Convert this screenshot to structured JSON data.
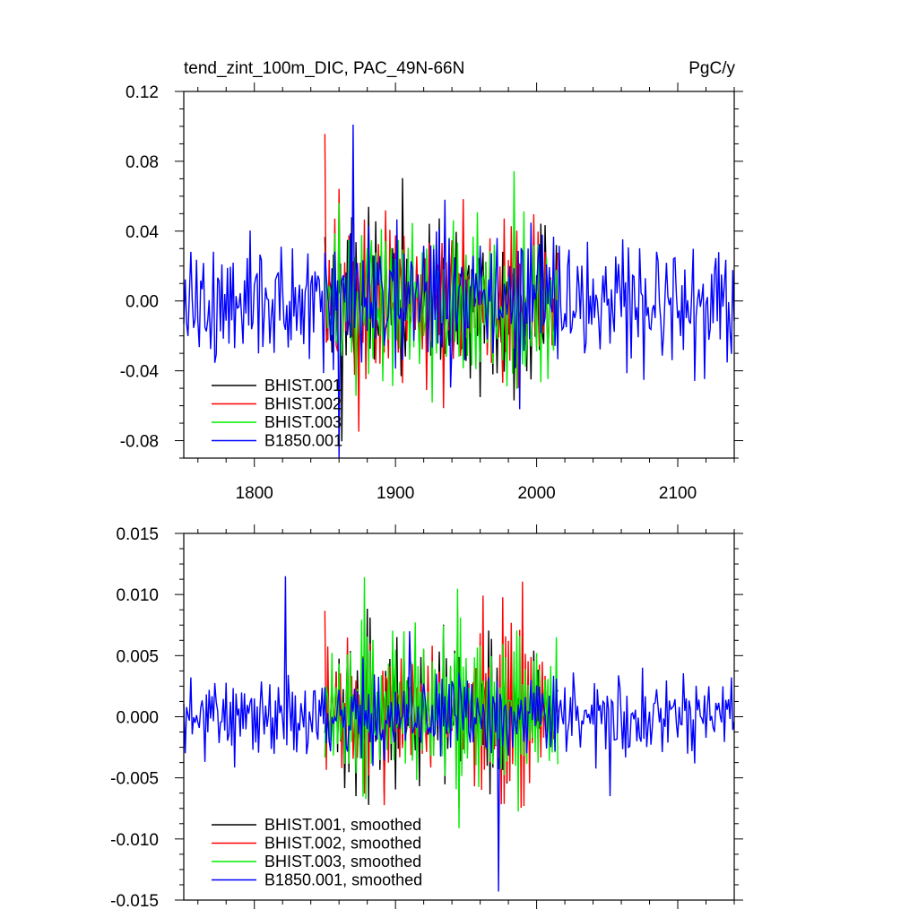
{
  "chart_data": [
    {
      "type": "line",
      "title": "tend_zint_100m_DIC, PAC_49N-66N",
      "units": "PgC/y",
      "xlim": [
        1750,
        2140
      ],
      "ylim": [
        -0.09,
        0.12
      ],
      "x_ticks": [
        1800,
        1900,
        2000,
        2100
      ],
      "x_tick_labels": [
        "1800",
        "1900",
        "2000",
        "2100"
      ],
      "y_ticks": [
        -0.08,
        -0.04,
        0.0,
        0.04,
        0.08,
        0.12
      ],
      "y_tick_labels": [
        "-0.08",
        "-0.04",
        "0.00",
        "0.04",
        "0.08",
        "0.12"
      ],
      "grid": false,
      "legend_position": "bottom-left",
      "series": [
        {
          "name": "BHIST.001",
          "color": "#000000",
          "x_start": 1850,
          "x_end": 2015,
          "base": 0.0,
          "values": [
            0.03,
            -0.04,
            0.05,
            -0.02,
            0.01,
            -0.07,
            0.04,
            0.02,
            -0.05,
            0.06,
            -0.03,
            0.0,
            0.05,
            -0.06,
            0.02,
            0.04,
            -0.03,
            0.06,
            -0.05,
            0.01,
            0.03,
            -0.04,
            0.02,
            -0.078,
            0.05,
            -0.02,
            0.04,
            -0.05,
            0.03,
            0.0,
            -0.04,
            0.06,
            -0.02,
            0.01,
            -0.05,
            0.04,
            0.02,
            -0.03,
            0.05,
            -0.06,
            0.02,
            0.03,
            -0.04,
            0.05,
            -0.01,
            0.0,
            -0.05,
            0.04,
            0.03,
            -0.02,
            0.06,
            -0.04,
            0.01,
            0.05,
            -0.03,
            0.02,
            -0.06,
            0.04,
            0.0,
            -0.02,
            0.05,
            -0.04,
            0.03,
            0.01,
            -0.05,
            0.06,
            -0.03,
            0.02,
            -0.01,
            0.04
          ]
        },
        {
          "name": "BHIST.002",
          "color": "#ff0000",
          "x_start": 1850,
          "x_end": 2015,
          "base": 0.0,
          "values": [
            0.089,
            -0.05,
            0.03,
            -0.06,
            0.07,
            -0.02,
            0.04,
            -0.04,
            0.02,
            0.05,
            -0.07,
            0.03,
            0.06,
            -0.03,
            0.01,
            -0.05,
            0.04,
            0.02,
            -0.06,
            0.05,
            -0.01,
            0.03,
            -0.04,
            0.06,
            -0.02,
            0.0,
            0.04,
            -0.05,
            0.02,
            0.03,
            -0.067,
            0.05,
            -0.03,
            0.01,
            0.04,
            -0.06,
            0.03,
            -0.02,
            0.05,
            0.0,
            -0.04,
            0.06,
            -0.03,
            0.02,
            -0.05,
            0.04,
            0.01,
            -0.02,
            0.05,
            -0.06,
            0.03,
            -0.01,
            0.04,
            -0.072,
            0.02,
            0.05,
            -0.03,
            0.06,
            0.01,
            -0.04,
            0.03,
            -0.02,
            0.05,
            -0.05,
            0.0,
            0.04,
            -0.03,
            0.02,
            0.01,
            -0.02
          ]
        },
        {
          "name": "BHIST.003",
          "color": "#00ee00",
          "x_start": 1850,
          "x_end": 2015,
          "base": 0.0,
          "values": [
            0.02,
            -0.03,
            0.04,
            -0.05,
            0.06,
            -0.02,
            0.03,
            -0.04,
            0.05,
            -0.06,
            0.01,
            0.04,
            -0.03,
            0.06,
            -0.05,
            0.02,
            -0.01,
            0.07,
            -0.04,
            0.03,
            -0.06,
            0.02,
            0.05,
            -0.03,
            0.01,
            -0.04,
            0.06,
            -0.02,
            0.04,
            -0.05,
            0.03,
            0.0,
            -0.06,
            0.05,
            -0.02,
            0.04,
            -0.03,
            0.06,
            -0.05,
            0.02,
            0.03,
            -0.04,
            0.05,
            -0.01,
            -0.06,
            0.081,
            -0.03,
            0.02,
            0.04,
            -0.05,
            0.06,
            -0.02,
            0.01,
            -0.04,
            0.05,
            -0.03,
            0.08,
            -0.06,
            0.02,
            -0.075,
            0.04,
            -0.02,
            0.03,
            -0.05,
            0.06,
            0.01,
            -0.04,
            0.02,
            -0.03,
            0.03
          ]
        },
        {
          "name": "B1850.001",
          "color": "#0000ff",
          "x_start": 1750,
          "x_end": 2140,
          "base": 0.0,
          "amplitude": 0.045,
          "seed": 4,
          "peaks": [
            [
              1870,
              0.101
            ],
            [
              1860,
              -0.09
            ],
            [
              1935,
              0.058
            ],
            [
              1988,
              -0.062
            ]
          ]
        }
      ]
    },
    {
      "type": "line",
      "ylim": [
        -0.015,
        0.015
      ],
      "xlim": [
        1750,
        2140
      ],
      "x_ticks": [
        1800,
        1900,
        2000,
        2100
      ],
      "y_ticks": [
        -0.015,
        -0.01,
        -0.005,
        0.0,
        0.005,
        0.01,
        0.015
      ],
      "y_tick_labels": [
        "-0.015",
        "-0.010",
        "-0.005",
        "0.000",
        "0.005",
        "0.010",
        "0.015"
      ],
      "grid": false,
      "legend_position": "bottom-left",
      "series": [
        {
          "name": "BHIST.001, smoothed",
          "color": "#000000",
          "x_start": 1850,
          "x_end": 2015,
          "base": 0.001,
          "values": [
            -0.002,
            0.004,
            -0.003,
            0.006,
            0.002,
            -0.005,
            0.008,
            0.003,
            -0.007,
            0.005,
            -0.001,
            0.011,
            0.004,
            -0.004,
            0.006,
            -0.006,
            0.002,
            0.007,
            -0.009,
            0.003,
            0.005,
            -0.002,
            0.004,
            -0.005,
            0.008,
            0.001,
            -0.003,
            0.006,
            0.002,
            -0.004,
            0.009,
            0.004,
            -0.002,
            0.007,
            -0.006,
            0.003,
            0.005,
            -0.001,
            0.004,
            0.002,
            -0.003,
            0.006,
            0.008,
            0.003,
            0.005,
            -0.004,
            0.007,
            0.002,
            0.004,
            -0.002,
            0.006,
            0.003,
            0.001,
            0.005,
            -0.003,
            0.004,
            0.002,
            -0.001,
            0.003,
            0.0
          ]
        },
        {
          "name": "BHIST.002, smoothed",
          "color": "#ff0000",
          "x_start": 1850,
          "x_end": 2015,
          "base": 0.001,
          "values": [
            0.008,
            0.004,
            -0.003,
            0.006,
            -0.005,
            0.002,
            0.007,
            -0.004,
            0.005,
            0.001,
            -0.006,
            0.008,
            0.003,
            -0.002,
            0.004,
            -0.007,
            0.005,
            0.002,
            -0.003,
            0.006,
            0.004,
            -0.001,
            0.007,
            -0.004,
            0.003,
            0.005,
            -0.006,
            0.008,
            0.002,
            -0.002,
            0.005,
            0.003,
            -0.004,
            0.006,
            0.009,
            -0.003,
            0.004,
            0.001,
            -0.007,
            0.006,
            0.01,
            0.003,
            0.005,
            -0.002,
            0.004,
            0.011,
            0.006,
            0.008,
            0.002,
            0.005,
            0.012,
            0.004,
            0.007,
            0.001,
            0.004,
            0.006,
            0.002,
            0.003,
            -0.001,
            0.002
          ]
        },
        {
          "name": "BHIST.003, smoothed",
          "color": "#00ee00",
          "x_start": 1850,
          "x_end": 2015,
          "base": 0.001,
          "values": [
            -0.004,
            0.003,
            -0.006,
            0.005,
            0.002,
            -0.003,
            0.007,
            0.004,
            -0.005,
            0.006,
            0.012,
            0.003,
            0.008,
            -0.004,
            0.005,
            0.002,
            -0.006,
            0.007,
            0.004,
            -0.002,
            0.006,
            0.003,
            -0.005,
            0.008,
            0.002,
            0.005,
            -0.003,
            0.006,
            0.004,
            -0.001,
            0.009,
            0.002,
            -0.004,
            0.007,
            0.011,
            0.004,
            0.006,
            -0.002,
            0.005,
            0.008,
            0.003,
            -0.003,
            0.006,
            0.004,
            0.002,
            0.007,
            0.005,
            -0.001,
            0.006,
            0.009,
            0.003,
            0.005,
            0.002,
            0.004,
            0.006,
            0.001,
            0.003,
            0.005,
            0.002,
            0.007
          ]
        },
        {
          "name": "B1850.001, smoothed",
          "color": "#0000ff",
          "x_start": 1750,
          "x_end": 2140,
          "base": 0.0,
          "amplitude": 0.004,
          "seed": 11,
          "peaks": [
            [
              1822,
              0.0115
            ],
            [
              1973,
              -0.0143
            ],
            [
              1910,
              0.007
            ],
            [
              2052,
              -0.0065
            ]
          ]
        }
      ]
    }
  ]
}
